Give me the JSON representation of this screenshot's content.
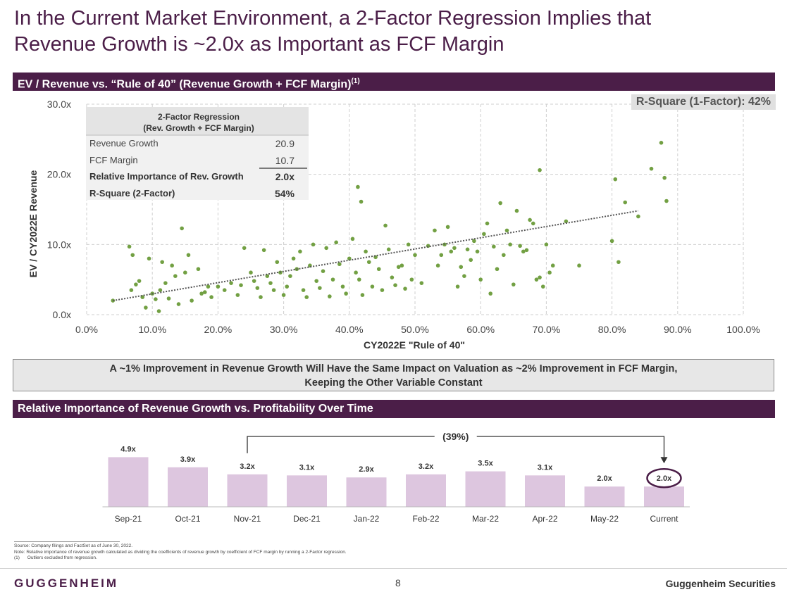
{
  "page": {
    "title_line1": "In the Current Market Environment, a 2-Factor Regression Implies that",
    "title_line2": "Revenue Growth is ~2.0x as Important as FCF Margin"
  },
  "scatter_header": {
    "label": "EV / Revenue vs. “Rule of 40” (Revenue Growth + FCF Margin)",
    "superscript": "(1)"
  },
  "rsq_badge": "R-Square (1-Factor): 42%",
  "regression_table": {
    "header_line1": "2-Factor Regression",
    "header_line2": "(Rev. Growth + FCF Margin)",
    "rows": [
      {
        "label": "Revenue Growth",
        "value": "20.9"
      },
      {
        "label": "FCF Margin",
        "value": "10.7"
      },
      {
        "label": "Relative Importance of Rev. Growth",
        "value": "2.0x"
      },
      {
        "label": "R-Square (2-Factor)",
        "value": "54%"
      }
    ]
  },
  "callout": {
    "line1": "A ~1% Improvement in Revenue Growth Will Have the Same Impact on Valuation as ~2% Improvement in FCF Margin,",
    "line2": "Keeping the Other Variable Constant"
  },
  "bar_header": "Relative Importance of Revenue Growth vs. Profitability Over Time",
  "colors": {
    "brand": "#4b1e48",
    "point": "#72a043",
    "bar": "#ddc6df",
    "trend": "#555555"
  },
  "chart_data": [
    {
      "type": "scatter",
      "title": "EV / Revenue vs. “Rule of 40” (Revenue Growth + FCF Margin)",
      "xlabel": "CY2022E \"Rule of 40\"",
      "ylabel": "EV / CY2022E Revenue",
      "xlim": [
        0,
        100
      ],
      "ylim": [
        0,
        30
      ],
      "xticks": [
        "0.0%",
        "10.0%",
        "20.0%",
        "30.0%",
        "40.0%",
        "50.0%",
        "60.0%",
        "70.0%",
        "80.0%",
        "90.0%",
        "100.0%"
      ],
      "yticks": [
        "0.0x",
        "10.0x",
        "20.0x",
        "30.0x"
      ],
      "grid": true,
      "trendline": {
        "x": [
          4,
          84
        ],
        "y": [
          2.0,
          14.8
        ]
      },
      "points": [
        [
          4,
          2
        ],
        [
          6.5,
          9.7
        ],
        [
          7,
          8.5
        ],
        [
          6.8,
          3.5
        ],
        [
          7.5,
          4.3
        ],
        [
          8,
          4.8
        ],
        [
          8.5,
          2.5
        ],
        [
          9,
          1
        ],
        [
          9.5,
          8
        ],
        [
          10,
          3
        ],
        [
          10.5,
          2.2
        ],
        [
          11,
          0.5
        ],
        [
          11.2,
          3.5
        ],
        [
          11.5,
          7.5
        ],
        [
          12,
          4.5
        ],
        [
          12.5,
          2.3
        ],
        [
          13,
          7
        ],
        [
          13.5,
          5.5
        ],
        [
          14,
          1.5
        ],
        [
          14.5,
          12.3
        ],
        [
          15,
          6
        ],
        [
          15.5,
          8.5
        ],
        [
          16,
          2
        ],
        [
          17,
          6.5
        ],
        [
          17.5,
          3
        ],
        [
          18,
          3.2
        ],
        [
          18.5,
          4
        ],
        [
          19,
          2.5
        ],
        [
          20,
          4
        ],
        [
          21,
          3.5
        ],
        [
          22,
          4.5
        ],
        [
          23,
          2.8
        ],
        [
          23.5,
          4.2
        ],
        [
          24,
          9.5
        ],
        [
          25,
          6
        ],
        [
          25.5,
          4.8
        ],
        [
          26,
          3.8
        ],
        [
          26.5,
          2.5
        ],
        [
          27,
          9.2
        ],
        [
          27.5,
          5.5
        ],
        [
          28,
          4.5
        ],
        [
          28.5,
          3.5
        ],
        [
          29,
          7.5
        ],
        [
          29.5,
          6
        ],
        [
          30,
          2.8
        ],
        [
          30.5,
          4
        ],
        [
          31,
          5.5
        ],
        [
          31.5,
          8
        ],
        [
          32,
          6.5
        ],
        [
          32.5,
          9
        ],
        [
          33,
          3.5
        ],
        [
          33.5,
          2.5
        ],
        [
          34,
          7
        ],
        [
          34.5,
          10
        ],
        [
          35,
          4.8
        ],
        [
          35.5,
          3.8
        ],
        [
          36,
          6.2
        ],
        [
          36.5,
          9.5
        ],
        [
          37,
          2.6
        ],
        [
          37.5,
          5
        ],
        [
          38,
          10.3
        ],
        [
          38.5,
          7.2
        ],
        [
          39,
          4
        ],
        [
          39.5,
          3
        ],
        [
          40,
          8
        ],
        [
          40.5,
          10.8
        ],
        [
          41,
          6
        ],
        [
          41.5,
          5
        ],
        [
          42,
          2.8
        ],
        [
          42.5,
          9
        ],
        [
          43,
          7.5
        ],
        [
          43.5,
          4
        ],
        [
          44,
          8.2
        ],
        [
          44.5,
          6.5
        ],
        [
          45,
          3.5
        ],
        [
          45.5,
          12.7
        ],
        [
          46,
          9.3
        ],
        [
          46.5,
          5.3
        ],
        [
          47,
          4.2
        ],
        [
          47.5,
          6.8
        ],
        [
          48,
          7
        ],
        [
          48.5,
          3.7
        ],
        [
          49,
          10
        ],
        [
          49.5,
          5
        ],
        [
          50,
          8.5
        ],
        [
          41.3,
          18.2
        ],
        [
          41.8,
          16.1
        ],
        [
          51,
          4.5
        ],
        [
          52,
          9.8
        ],
        [
          53,
          12
        ],
        [
          53.5,
          7
        ],
        [
          54,
          8.5
        ],
        [
          54.5,
          10
        ],
        [
          55,
          12.5
        ],
        [
          55.5,
          9
        ],
        [
          56,
          9.5
        ],
        [
          56.5,
          4
        ],
        [
          57,
          6.8
        ],
        [
          57.5,
          5.5
        ],
        [
          58,
          9.3
        ],
        [
          58.5,
          7.8
        ],
        [
          59,
          10.5
        ],
        [
          59.5,
          9
        ],
        [
          60,
          5
        ],
        [
          60.5,
          11.5
        ],
        [
          61,
          13
        ],
        [
          61.5,
          3
        ],
        [
          62,
          9.7
        ],
        [
          62.5,
          6.5
        ],
        [
          63,
          15.9
        ],
        [
          63.5,
          8.5
        ],
        [
          64,
          12
        ],
        [
          64.5,
          10
        ],
        [
          65,
          4.3
        ],
        [
          65.5,
          14.8
        ],
        [
          66,
          9.8
        ],
        [
          66.5,
          9
        ],
        [
          67,
          9.2
        ],
        [
          67.5,
          13.5
        ],
        [
          68,
          13
        ],
        [
          68.5,
          5
        ],
        [
          69,
          5.3
        ],
        [
          69.5,
          4
        ],
        [
          70,
          10
        ],
        [
          70.5,
          6
        ],
        [
          71,
          7
        ],
        [
          73,
          13.3
        ],
        [
          75,
          7
        ],
        [
          69,
          20.6
        ],
        [
          80,
          10.5
        ],
        [
          81,
          7.5
        ],
        [
          80.5,
          19.3
        ],
        [
          82,
          16
        ],
        [
          84,
          14
        ],
        [
          86,
          20.8
        ],
        [
          87.5,
          24.5
        ],
        [
          88,
          19.5
        ],
        [
          88.3,
          16.2
        ]
      ]
    },
    {
      "type": "bar",
      "title": "Relative Importance of Revenue Growth vs. Profitability Over Time",
      "categories": [
        "Sep-21",
        "Oct-21",
        "Nov-21",
        "Dec-21",
        "Jan-22",
        "Feb-22",
        "Mar-22",
        "Apr-22",
        "May-22",
        "Current"
      ],
      "values": [
        4.9,
        3.9,
        3.2,
        3.1,
        2.9,
        3.2,
        3.5,
        3.1,
        2.0,
        2.0
      ],
      "labels": [
        "4.9x",
        "3.9x",
        "3.2x",
        "3.1x",
        "2.9x",
        "3.2x",
        "3.5x",
        "3.1x",
        "2.0x",
        "2.0x"
      ],
      "ylim": [
        0,
        5
      ],
      "annotation": {
        "text": "(39%)",
        "from": "Nov-21",
        "to": "Current"
      },
      "highlight": "Current"
    }
  ],
  "footnotes": {
    "source": "Source: Company filings and FactSet as of June 30, 2022.",
    "note": "Note: Relative importance of revenue growth calculated as dividing the coefficients of revenue growth by coefficient of FCF margin by running a 2-Factor regression.",
    "one_num": "(1)",
    "one_text": "Outliers excluded from regression."
  },
  "footer": {
    "logo": "GUGGENHEIM",
    "page_number": "8",
    "company": "Guggenheim Securities"
  }
}
